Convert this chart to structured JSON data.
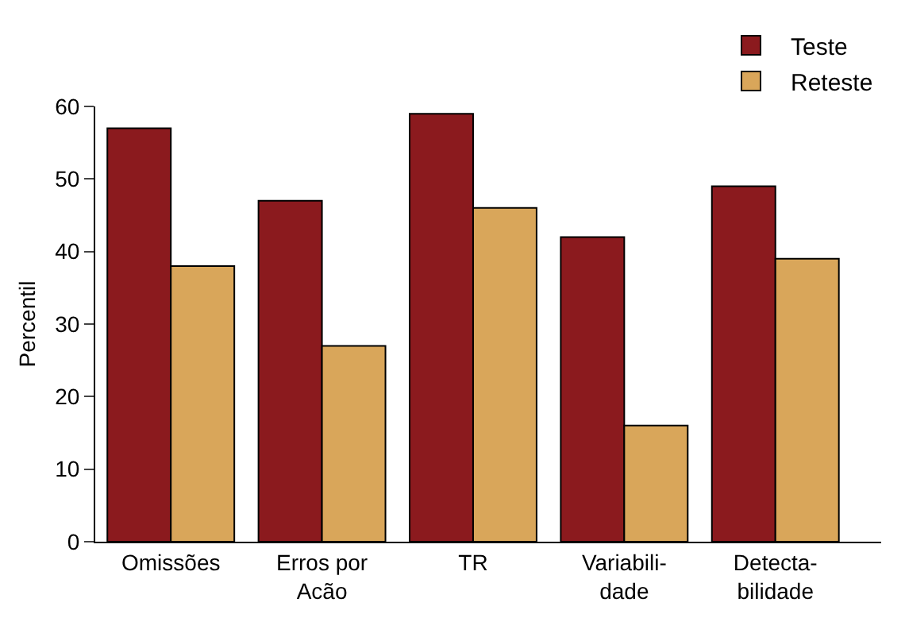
{
  "chart_data": {
    "type": "bar",
    "ylabel": "Percentil",
    "categories": [
      "Omissões",
      "Erros por\nAcão",
      "TR",
      "Variabili-\ndade",
      "Detecta-\nbilidade"
    ],
    "series": [
      {
        "name": "Teste",
        "color": "#8b1a1e",
        "values": [
          57,
          47,
          59,
          42,
          49
        ]
      },
      {
        "name": "Reteste",
        "color": "#d9a65a",
        "values": [
          38,
          27,
          46,
          16,
          39
        ]
      }
    ],
    "ylim": [
      0,
      60
    ],
    "yticks": [
      0,
      10,
      20,
      30,
      40,
      50,
      60
    ],
    "grid": false,
    "legend": "top right"
  }
}
